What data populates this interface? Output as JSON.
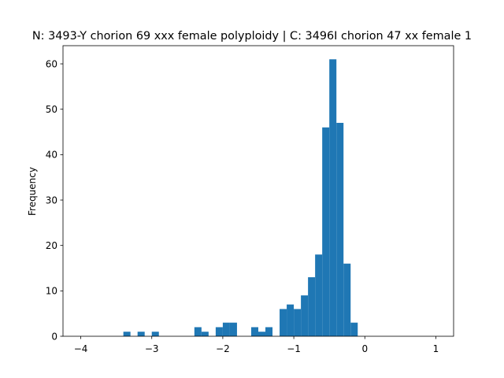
{
  "chart_data": {
    "type": "bar",
    "title": "N: 3493-Y chorion 69 xxx female polyploidy | C: 3496I chorion 47 xx female 1",
    "xlabel": "",
    "ylabel": "Frequency",
    "xlim": [
      -4.25,
      1.25
    ],
    "ylim": [
      0,
      64
    ],
    "grid": false,
    "legend": "none",
    "bar_color": "#1f77b4",
    "bin_width": 0.1,
    "x_ticks": [
      -4,
      -3,
      -2,
      -1,
      0,
      1
    ],
    "x_tick_labels": [
      "−4",
      "−3",
      "−2",
      "−1",
      "0",
      "1"
    ],
    "y_ticks": [
      0,
      10,
      20,
      30,
      40,
      50,
      60
    ],
    "y_tick_labels": [
      "0",
      "10",
      "20",
      "30",
      "40",
      "50",
      "60"
    ],
    "bins": [
      {
        "x0": -3.4,
        "x1": -3.3,
        "count": 1
      },
      {
        "x0": -3.2,
        "x1": -3.1,
        "count": 1
      },
      {
        "x0": -3.0,
        "x1": -2.9,
        "count": 1
      },
      {
        "x0": -2.4,
        "x1": -2.3,
        "count": 2
      },
      {
        "x0": -2.3,
        "x1": -2.2,
        "count": 1
      },
      {
        "x0": -2.1,
        "x1": -2.0,
        "count": 2
      },
      {
        "x0": -2.0,
        "x1": -1.9,
        "count": 3
      },
      {
        "x0": -1.9,
        "x1": -1.8,
        "count": 3
      },
      {
        "x0": -1.6,
        "x1": -1.5,
        "count": 2
      },
      {
        "x0": -1.5,
        "x1": -1.4,
        "count": 1
      },
      {
        "x0": -1.4,
        "x1": -1.3,
        "count": 2
      },
      {
        "x0": -1.2,
        "x1": -1.1,
        "count": 6
      },
      {
        "x0": -1.1,
        "x1": -1.0,
        "count": 7
      },
      {
        "x0": -1.0,
        "x1": -0.9,
        "count": 6
      },
      {
        "x0": -0.9,
        "x1": -0.8,
        "count": 9
      },
      {
        "x0": -0.8,
        "x1": -0.7,
        "count": 13
      },
      {
        "x0": -0.7,
        "x1": -0.6,
        "count": 18
      },
      {
        "x0": -0.6,
        "x1": -0.5,
        "count": 46
      },
      {
        "x0": -0.5,
        "x1": -0.4,
        "count": 61
      },
      {
        "x0": -0.4,
        "x1": -0.3,
        "count": 47
      },
      {
        "x0": -0.3,
        "x1": -0.2,
        "count": 16
      },
      {
        "x0": -0.2,
        "x1": -0.1,
        "count": 3
      }
    ]
  }
}
